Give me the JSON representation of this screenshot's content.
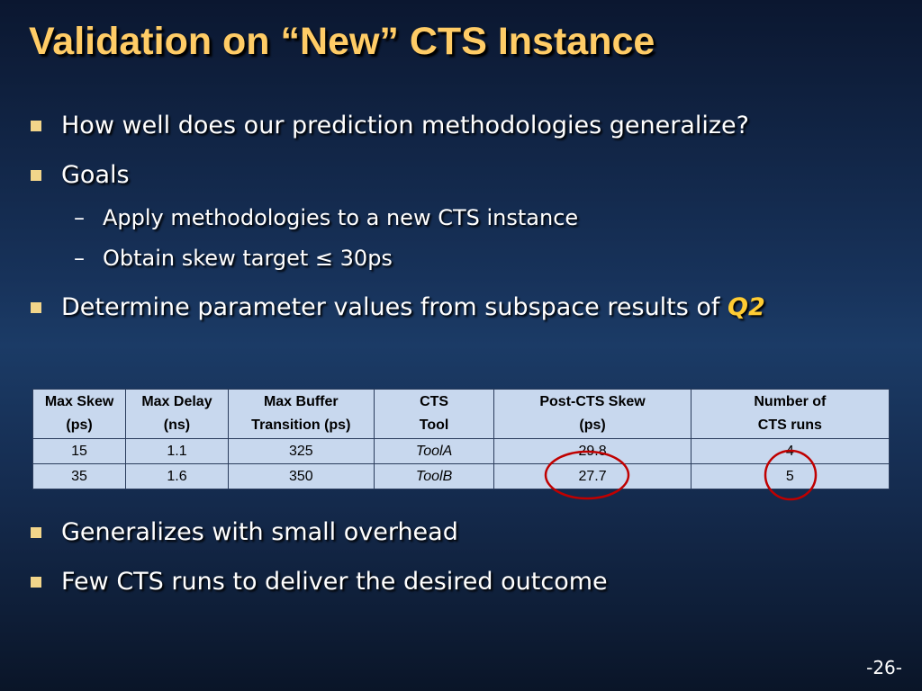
{
  "title": "Validation on “New” CTS Instance",
  "bullets": [
    {
      "text": "How well does our prediction methodologies generalize?"
    },
    {
      "text": "Goals",
      "sub": [
        "Apply methodologies to a new CTS instance",
        "Obtain skew target ≤ 30ps"
      ]
    },
    {
      "text": "Determine parameter values from subspace results of ",
      "emphasis": "Q2"
    }
  ],
  "table": {
    "header": [
      [
        "Max Skew",
        "(ps)"
      ],
      [
        "Max Delay",
        "(ns)"
      ],
      [
        "Max Buffer",
        "Transition (ps)"
      ],
      [
        "CTS",
        "Tool"
      ],
      [
        "Post-CTS Skew",
        "(ps)"
      ],
      [
        "Number of",
        "CTS runs"
      ]
    ],
    "rows": [
      [
        15,
        1.1,
        325,
        "ToolA",
        29.8,
        4
      ],
      [
        35,
        1.6,
        350,
        "ToolB",
        27.7,
        5
      ]
    ]
  },
  "bullets_after": [
    "Generalizes with small overhead",
    "Few CTS runs to deliver the desired outcome"
  ],
  "page_number": "-26-"
}
